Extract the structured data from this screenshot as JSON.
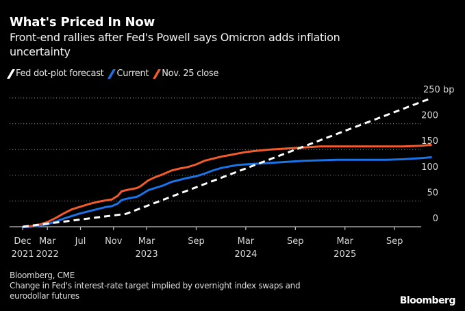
{
  "chart_data": {
    "type": "line",
    "title": "What's Priced In Now",
    "subtitle": "Front-end rallies after Fed's Powell says Omicron adds inflation uncertainty",
    "xlabel": "",
    "ylabel": "bp",
    "ylim": [
      0,
      250
    ],
    "y_ticks": [
      0,
      50,
      100,
      150,
      200,
      250
    ],
    "y_tick_labels": [
      "0",
      "50",
      "100",
      "150",
      "200",
      "250 bp"
    ],
    "x_unit": "months since Dec 2021",
    "xlim": [
      0,
      50
    ],
    "x_ticks": [
      {
        "month": 0,
        "line1": "Dec",
        "line2": "2021"
      },
      {
        "month": 3,
        "line1": "Mar",
        "line2": "2022"
      },
      {
        "month": 7,
        "line1": "Jul",
        "line2": ""
      },
      {
        "month": 11,
        "line1": "Nov",
        "line2": ""
      },
      {
        "month": 15,
        "line1": "Mar",
        "line2": "2023"
      },
      {
        "month": 21,
        "line1": "Sep",
        "line2": ""
      },
      {
        "month": 27,
        "line1": "Mar",
        "line2": "2024"
      },
      {
        "month": 33,
        "line1": "Sep",
        "line2": ""
      },
      {
        "month": 39,
        "line1": "Mar",
        "line2": "2025"
      },
      {
        "month": 45,
        "line1": "Sep",
        "line2": ""
      }
    ],
    "grid": true,
    "legend_position": "top-left",
    "series": [
      {
        "name": "Fed dot-plot forecast",
        "color": "#ffffff",
        "style": "dashed",
        "x": [
          0,
          12.5,
          49.5
        ],
        "values": [
          0,
          25,
          250
        ]
      },
      {
        "name": "Current",
        "color": "#1a74e8",
        "style": "solid",
        "x": [
          0,
          1,
          2,
          3,
          4,
          5,
          6,
          7,
          8,
          9,
          10,
          10.8,
          11.5,
          12,
          12.8,
          13.8,
          14.3,
          15.2,
          16,
          17,
          18,
          19,
          20,
          21,
          22,
          23,
          24,
          25,
          26,
          27,
          28,
          30,
          32,
          34,
          36,
          38,
          40,
          42,
          44,
          46,
          48,
          49.5
        ],
        "values": [
          -1,
          0,
          2,
          5,
          10,
          16,
          21,
          26,
          30,
          34,
          38,
          40,
          45,
          52,
          55,
          58,
          62,
          71,
          75,
          80,
          87,
          91,
          95,
          98,
          103,
          109,
          114,
          117,
          120,
          121,
          122,
          124,
          126,
          128,
          129,
          130,
          130,
          130,
          130,
          131,
          133,
          135
        ]
      },
      {
        "name": "Nov. 25 close",
        "color": "#f25b2b",
        "style": "solid",
        "x": [
          0,
          1,
          2,
          3,
          4,
          5,
          6,
          7,
          8,
          9,
          10,
          10.8,
          11.5,
          12,
          12.8,
          13.8,
          14.3,
          15.2,
          16,
          17,
          18,
          19,
          20,
          21,
          22,
          23,
          24,
          25,
          26,
          27,
          28,
          30,
          32,
          34,
          36,
          38,
          40,
          42,
          44,
          46,
          48,
          49.5
        ],
        "values": [
          0,
          1,
          4,
          9,
          17,
          26,
          34,
          39,
          44,
          48,
          51,
          53,
          60,
          69,
          72,
          75,
          79,
          90,
          96,
          102,
          109,
          113,
          116,
          121,
          128,
          132,
          136,
          139,
          142,
          145,
          147,
          150,
          152,
          154,
          156,
          156,
          156,
          156,
          156,
          156,
          157,
          159
        ]
      }
    ]
  },
  "legend": {
    "items": [
      {
        "label": "Fed dot-plot forecast",
        "color": "#ffffff"
      },
      {
        "label": "Current",
        "color": "#1a74e8"
      },
      {
        "label": "Nov. 25 close",
        "color": "#f25b2b"
      }
    ]
  },
  "footer": {
    "source": "Bloomberg, CME",
    "note": "Change in Fed's interest-rate target implied by overnight index swaps and eurodollar futures",
    "brand": "Bloomberg"
  }
}
